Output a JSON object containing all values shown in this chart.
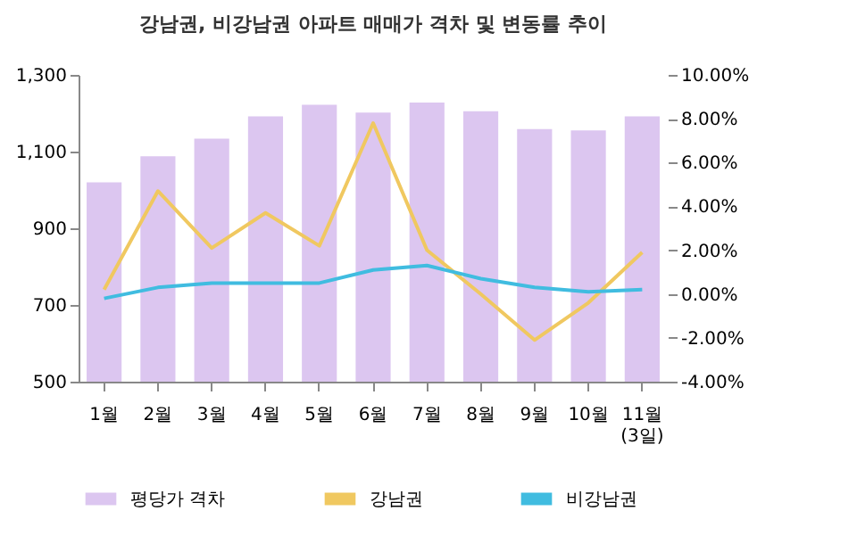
{
  "chart_data": {
    "type": "bar",
    "title": "강남권, 비강남권 아파트 매매가 격차 및 변동률 추이",
    "categories": [
      "1월",
      "2월",
      "3월",
      "4월",
      "5월",
      "6월",
      "7월",
      "8월",
      "9월",
      "10월",
      "11월\n(3일)"
    ],
    "series": [
      {
        "name": "평당가 격차",
        "color": "#dcc6f0",
        "values": [
          1020,
          1088,
          1134,
          1192,
          1222,
          1202,
          1228,
          1205,
          1159,
          1155,
          1192
        ]
      },
      {
        "name": "강남권",
        "type": "line",
        "axis": "y2",
        "color": "#f0c860",
        "values": [
          0.2,
          4.7,
          2.1,
          3.7,
          2.2,
          7.8,
          2.0,
          0.0,
          -2.1,
          -0.4,
          1.9
        ]
      },
      {
        "name": "비강남권",
        "type": "line",
        "axis": "y2",
        "color": "#40bce0",
        "values": [
          -0.2,
          0.3,
          0.5,
          0.5,
          0.5,
          1.1,
          1.3,
          0.7,
          0.3,
          0.1,
          0.2
        ]
      }
    ],
    "ylim": [
      500,
      1300
    ],
    "yticks": [
      500,
      700,
      900,
      {
        "value": 1100,
        "label": "1,100"
      },
      {
        "value": 1300,
        "label": "1,300"
      }
    ],
    "y2lim": [
      -4,
      10
    ],
    "y2ticks": [
      {
        "value": -4,
        "label": "-4.00%"
      },
      {
        "value": -2,
        "label": "-2.00%"
      },
      {
        "value": 0,
        "label": "0.00%"
      },
      {
        "value": 2,
        "label": "2.00%"
      },
      {
        "value": 4,
        "label": "4.00%"
      },
      {
        "value": 6,
        "label": "6.00%"
      },
      {
        "value": 8,
        "label": "8.00%"
      },
      {
        "value": 10,
        "label": "10.00%"
      }
    ],
    "grid": false,
    "legend": "bottom"
  }
}
